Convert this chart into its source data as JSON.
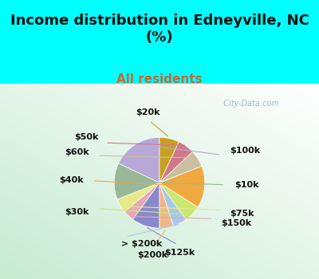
{
  "title": "Income distribution in Edneyville, NC\n(%)",
  "subtitle": "All residents",
  "bg_cyan": "#00FFFF",
  "chart_bg_color": "#d8ede0",
  "title_color": "#111111",
  "subtitle_color": "#cc6633",
  "watermark": "City-Data.com",
  "labels": [
    "$100k",
    "$10k",
    "$75k",
    "$150k",
    "$125k",
    "$200k",
    "> $200k",
    "$30k",
    "$40k",
    "$60k",
    "$50k",
    "$20k"
  ],
  "values": [
    18,
    13,
    5,
    4,
    10,
    5,
    5,
    6,
    15,
    6,
    6,
    7
  ],
  "colors": [
    "#b8a8d8",
    "#98b898",
    "#e8e888",
    "#e8a8b8",
    "#8888cc",
    "#f0b888",
    "#a8c8e8",
    "#c8e870",
    "#f0a840",
    "#c8c0a0",
    "#d07888",
    "#c8a020"
  ],
  "label_color": "#111111",
  "label_fontsize": 8,
  "title_fontsize": 13,
  "subtitle_fontsize": 11
}
